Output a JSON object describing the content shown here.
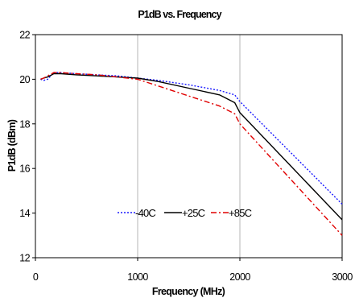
{
  "chart_data": {
    "type": "line",
    "title": "P1dB vs. Frequency",
    "xlabel": "Frequency (MHz)",
    "ylabel": "P1dB (dBm)",
    "xlim": [
      0,
      3000
    ],
    "ylim": [
      12,
      22
    ],
    "xticks": [
      0,
      1000,
      2000,
      3000
    ],
    "yticks": [
      12,
      14,
      16,
      18,
      20,
      22
    ],
    "grid": "vertical",
    "legend_position": "lower-center",
    "series": [
      {
        "name": "-40C",
        "color": "#1a1aff",
        "dash": "dotted",
        "x": [
          50,
          80,
          120,
          180,
          250,
          400,
          600,
          800,
          1000,
          1200,
          1500,
          1800,
          1950,
          2000,
          2500,
          3000
        ],
        "y": [
          20.0,
          19.95,
          20.0,
          20.3,
          20.3,
          20.25,
          20.2,
          20.15,
          20.05,
          19.95,
          19.75,
          19.5,
          19.3,
          19.0,
          16.7,
          14.4
        ]
      },
      {
        "name": "+25C",
        "color": "#000000",
        "dash": "solid",
        "x": [
          50,
          80,
          120,
          180,
          250,
          400,
          600,
          800,
          1000,
          1200,
          1500,
          1800,
          1950,
          2000,
          2500,
          3000
        ],
        "y": [
          20.0,
          20.05,
          20.1,
          20.25,
          20.25,
          20.2,
          20.15,
          20.1,
          20.05,
          19.9,
          19.6,
          19.3,
          18.95,
          18.5,
          16.1,
          13.7
        ]
      },
      {
        "name": "+85C",
        "color": "#e00000",
        "dash": "dashdot",
        "x": [
          50,
          80,
          120,
          180,
          250,
          400,
          600,
          800,
          1000,
          1200,
          1500,
          1800,
          1950,
          2000,
          2500,
          3000
        ],
        "y": [
          20.0,
          20.05,
          20.15,
          20.3,
          20.3,
          20.25,
          20.2,
          20.1,
          20.0,
          19.7,
          19.25,
          18.8,
          18.45,
          18.0,
          15.5,
          13.0
        ]
      }
    ]
  }
}
